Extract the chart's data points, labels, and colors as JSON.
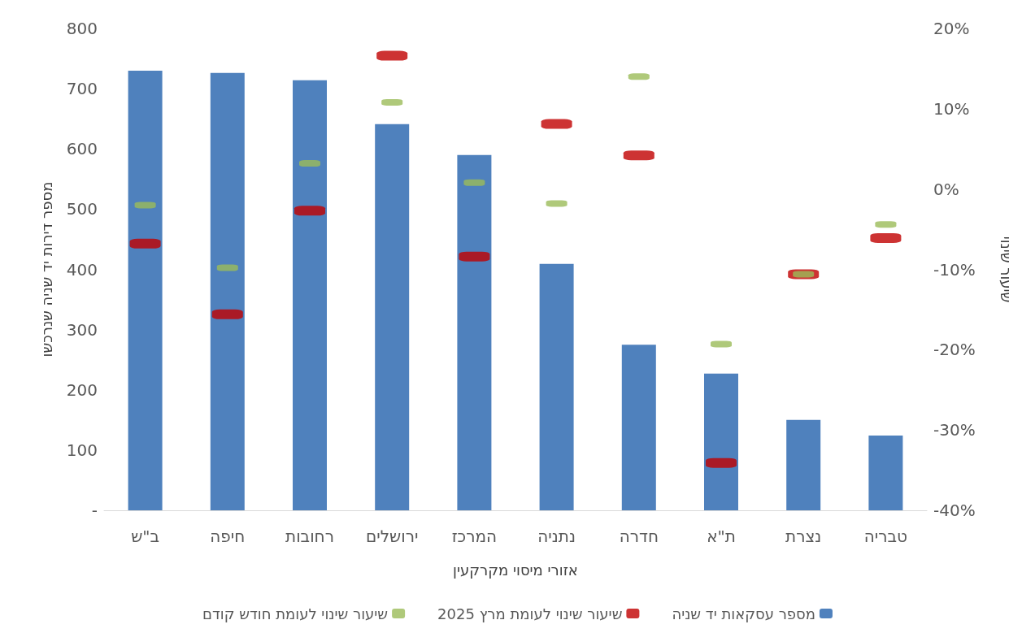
{
  "chart_data": {
    "type": "bar",
    "xlabel": "אזורי מיסוי מקרקעין",
    "ylabel": "מספר דירות יד שניה שנרכשו",
    "y2label": "שיעור שינוי",
    "categories": [
      "ב\"ש",
      "חיפה",
      "רחובות",
      "ירושלים",
      "המרכז",
      "נתניה",
      "חדרה",
      "ת\"א",
      "נצרת",
      "טבריה"
    ],
    "series": [
      {
        "name": "מספר עסקאות יד שניה",
        "color": "#4f81bd",
        "values": [
          730,
          726,
          714,
          641,
          590,
          409,
          275,
          227,
          150,
          124
        ]
      },
      {
        "name": "שיעור שינוי לעומת מרץ 2025",
        "type": "scatter",
        "axis": "y2",
        "color": "#c00000",
        "values": [
          -6.8,
          -15.6,
          -2.7,
          16.6,
          -8.4,
          8.1,
          4.2,
          -34.1,
          -10.6,
          -6.1
        ]
      },
      {
        "name": "שיעור שינוי לעומת חודש קודם",
        "type": "scatter",
        "axis": "y2",
        "color": "#9bbb59",
        "values": [
          -2.0,
          -9.8,
          3.2,
          10.8,
          0.8,
          -1.8,
          14.0,
          -19.3,
          -10.6,
          -4.4
        ]
      }
    ],
    "ylim": [
      0,
      800
    ],
    "yticks": [
      {
        "value": 0,
        "label": "-"
      },
      100,
      200,
      300,
      400,
      500,
      600,
      700,
      800
    ],
    "y2lim": [
      -40,
      20
    ],
    "y2ticks": [
      {
        "value": -40,
        "label": "-40%"
      },
      {
        "value": -30,
        "label": "-30%"
      },
      {
        "value": -20,
        "label": "-20%"
      },
      {
        "value": -10,
        "label": "-10%"
      },
      {
        "value": 0,
        "label": "0%"
      },
      {
        "value": 10,
        "label": "10%"
      },
      {
        "value": 20,
        "label": "20%"
      }
    ],
    "grid": false,
    "legend": "bottom"
  }
}
